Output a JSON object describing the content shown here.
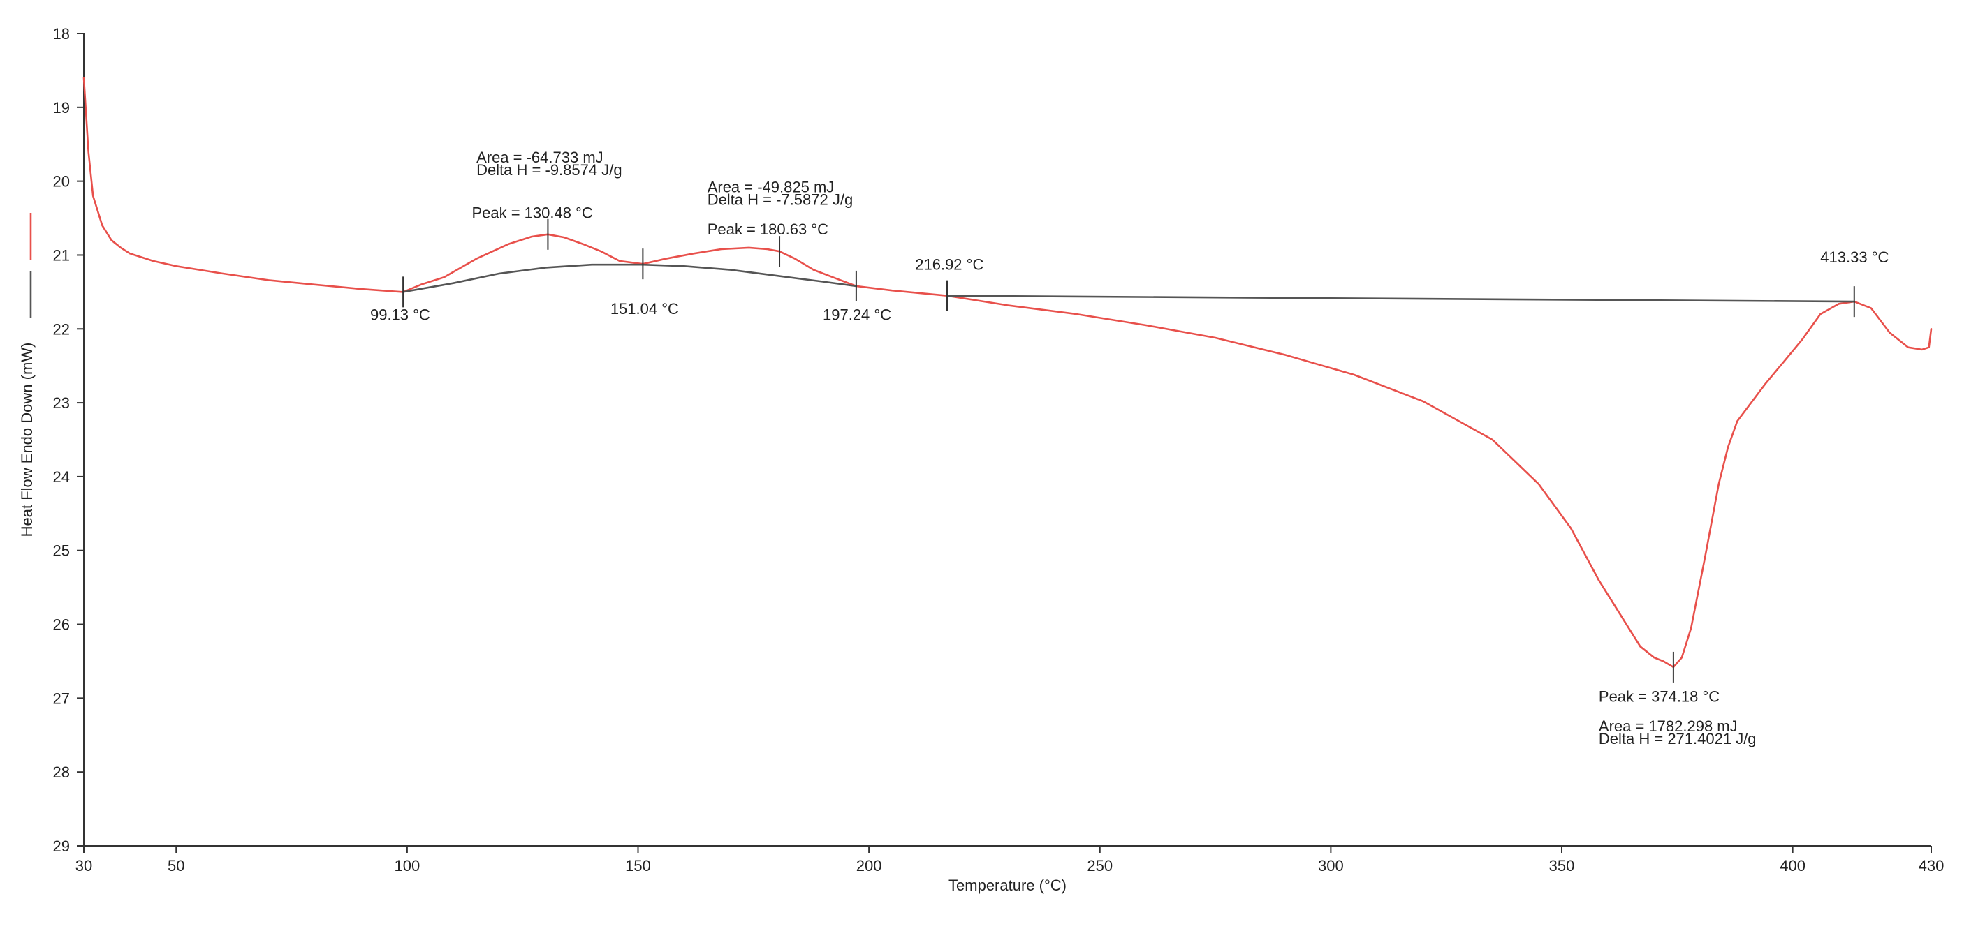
{
  "chart_data": {
    "type": "line",
    "title": "",
    "xlabel": "Temperature (°C)",
    "ylabel": "Heat Flow Endo Down (mW)",
    "xlim": [
      30,
      430
    ],
    "ylim": [
      18,
      29
    ],
    "y_inverted": true,
    "grid": false,
    "legend_position": "left",
    "x_ticks": [
      30,
      50,
      100,
      150,
      200,
      250,
      300,
      350,
      400,
      430
    ],
    "y_ticks": [
      18,
      19,
      20,
      21,
      22,
      23,
      24,
      25,
      26,
      27,
      28,
      29
    ],
    "series": [
      {
        "color": "#e8504b",
        "x": [
          30,
          31,
          32,
          34,
          36,
          38,
          40,
          45,
          50,
          60,
          70,
          80,
          90,
          99.13,
          103,
          108,
          115,
          122,
          127,
          130.48,
          134,
          138,
          142,
          146,
          151.04,
          156,
          162,
          168,
          174,
          178,
          180.63,
          184,
          188,
          193,
          197.24,
          205,
          216.92,
          230,
          245,
          260,
          275,
          290,
          305,
          320,
          335,
          345,
          352,
          358,
          363,
          367,
          370,
          372,
          374.18,
          376,
          378,
          381,
          384,
          386,
          388,
          391,
          394,
          398,
          402,
          406,
          410,
          413.33,
          417,
          421,
          425,
          428,
          429.5,
          430
        ],
        "y": [
          18.6,
          19.6,
          20.2,
          20.6,
          20.8,
          20.9,
          20.98,
          21.08,
          21.15,
          21.25,
          21.34,
          21.4,
          21.46,
          21.5,
          21.4,
          21.3,
          21.05,
          20.85,
          20.75,
          20.72,
          20.76,
          20.85,
          20.95,
          21.08,
          21.12,
          21.05,
          20.98,
          20.92,
          20.9,
          20.92,
          20.95,
          21.05,
          21.2,
          21.32,
          21.42,
          21.48,
          21.55,
          21.68,
          21.8,
          21.95,
          22.12,
          22.35,
          22.62,
          22.98,
          23.5,
          24.1,
          24.7,
          25.4,
          25.9,
          26.3,
          26.45,
          26.5,
          26.58,
          26.45,
          26.05,
          25.1,
          24.1,
          23.6,
          23.25,
          23.0,
          22.75,
          22.45,
          22.15,
          21.8,
          21.66,
          21.63,
          21.72,
          22.05,
          22.25,
          22.28,
          22.25,
          22.0
        ]
      },
      {
        "color": "#555555",
        "x": [
          99.13,
          110,
          120,
          130,
          140,
          151.04,
          160,
          170,
          180,
          190,
          197.24
        ],
        "y": [
          21.5,
          21.38,
          21.25,
          21.17,
          21.13,
          21.13,
          21.15,
          21.2,
          21.28,
          21.36,
          21.42
        ]
      },
      {
        "color": "#555555",
        "x": [
          216.92,
          413.33
        ],
        "y": [
          21.55,
          21.63
        ]
      }
    ],
    "markers": [
      {
        "x": 99.13,
        "y": 21.5
      },
      {
        "x": 130.48,
        "y": 20.72
      },
      {
        "x": 151.04,
        "y": 21.12
      },
      {
        "x": 180.63,
        "y": 20.95
      },
      {
        "x": 197.24,
        "y": 21.42
      },
      {
        "x": 216.92,
        "y": 21.55
      },
      {
        "x": 374.18,
        "y": 26.58
      },
      {
        "x": 413.33,
        "y": 21.63
      }
    ],
    "annotations": [
      {
        "lines": [
          "Area = -64.733 mJ",
          "Delta H = -9.8574 J/g"
        ],
        "x": 115,
        "y": 19.75
      },
      {
        "lines": [
          "Peak = 130.48 °C"
        ],
        "x": 114,
        "y": 20.5
      },
      {
        "lines": [
          "Area = -49.825 mJ",
          "Delta H = -7.5872 J/g"
        ],
        "x": 165,
        "y": 20.15
      },
      {
        "lines": [
          "Peak = 180.63 °C"
        ],
        "x": 165,
        "y": 20.72
      },
      {
        "lines": [
          "216.92 °C"
        ],
        "x": 210,
        "y": 21.2
      },
      {
        "lines": [
          "413.33 °C"
        ],
        "x": 406,
        "y": 21.1
      },
      {
        "lines": [
          "99.13 °C"
        ],
        "x": 92,
        "y": 21.88
      },
      {
        "lines": [
          "151.04 °C"
        ],
        "x": 144,
        "y": 21.8
      },
      {
        "lines": [
          "197.24 °C"
        ],
        "x": 190,
        "y": 21.88
      },
      {
        "lines": [
          "Peak = 374.18 °C"
        ],
        "x": 358,
        "y": 27.05
      },
      {
        "lines": [
          "Area = 1782.298 mJ",
          "Delta H = 271.4021 J/g"
        ],
        "x": 358,
        "y": 27.45
      }
    ]
  }
}
